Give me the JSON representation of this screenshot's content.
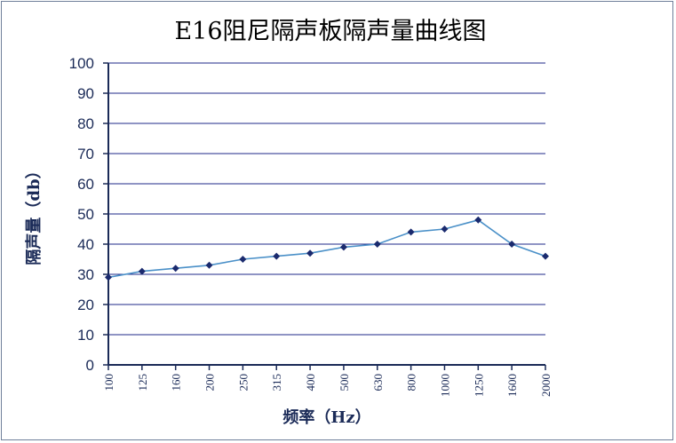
{
  "chart_data": {
    "type": "line",
    "title": "E16阻尼隔声板隔声量曲线图",
    "xlabel": "频率（Hz）",
    "ylabel": "隔声量（db）",
    "categories": [
      "100",
      "125",
      "160",
      "200",
      "250",
      "315",
      "400",
      "500",
      "630",
      "800",
      "1000",
      "1250",
      "1600",
      "2000"
    ],
    "series": [
      {
        "values": [
          29,
          31,
          32,
          33,
          35,
          36,
          37,
          39,
          40,
          44,
          45,
          48,
          40,
          36
        ]
      }
    ],
    "ylim": [
      0,
      100
    ],
    "yticks": [
      "0",
      "10",
      "20",
      "30",
      "40",
      "50",
      "60",
      "70",
      "80",
      "90",
      "100"
    ],
    "grid": true,
    "legend": "none",
    "colors": {
      "line": "#4a90c8",
      "marker": "#1a2a6e",
      "grid": "#1f2a8a",
      "axis": "#1a2a57"
    }
  }
}
